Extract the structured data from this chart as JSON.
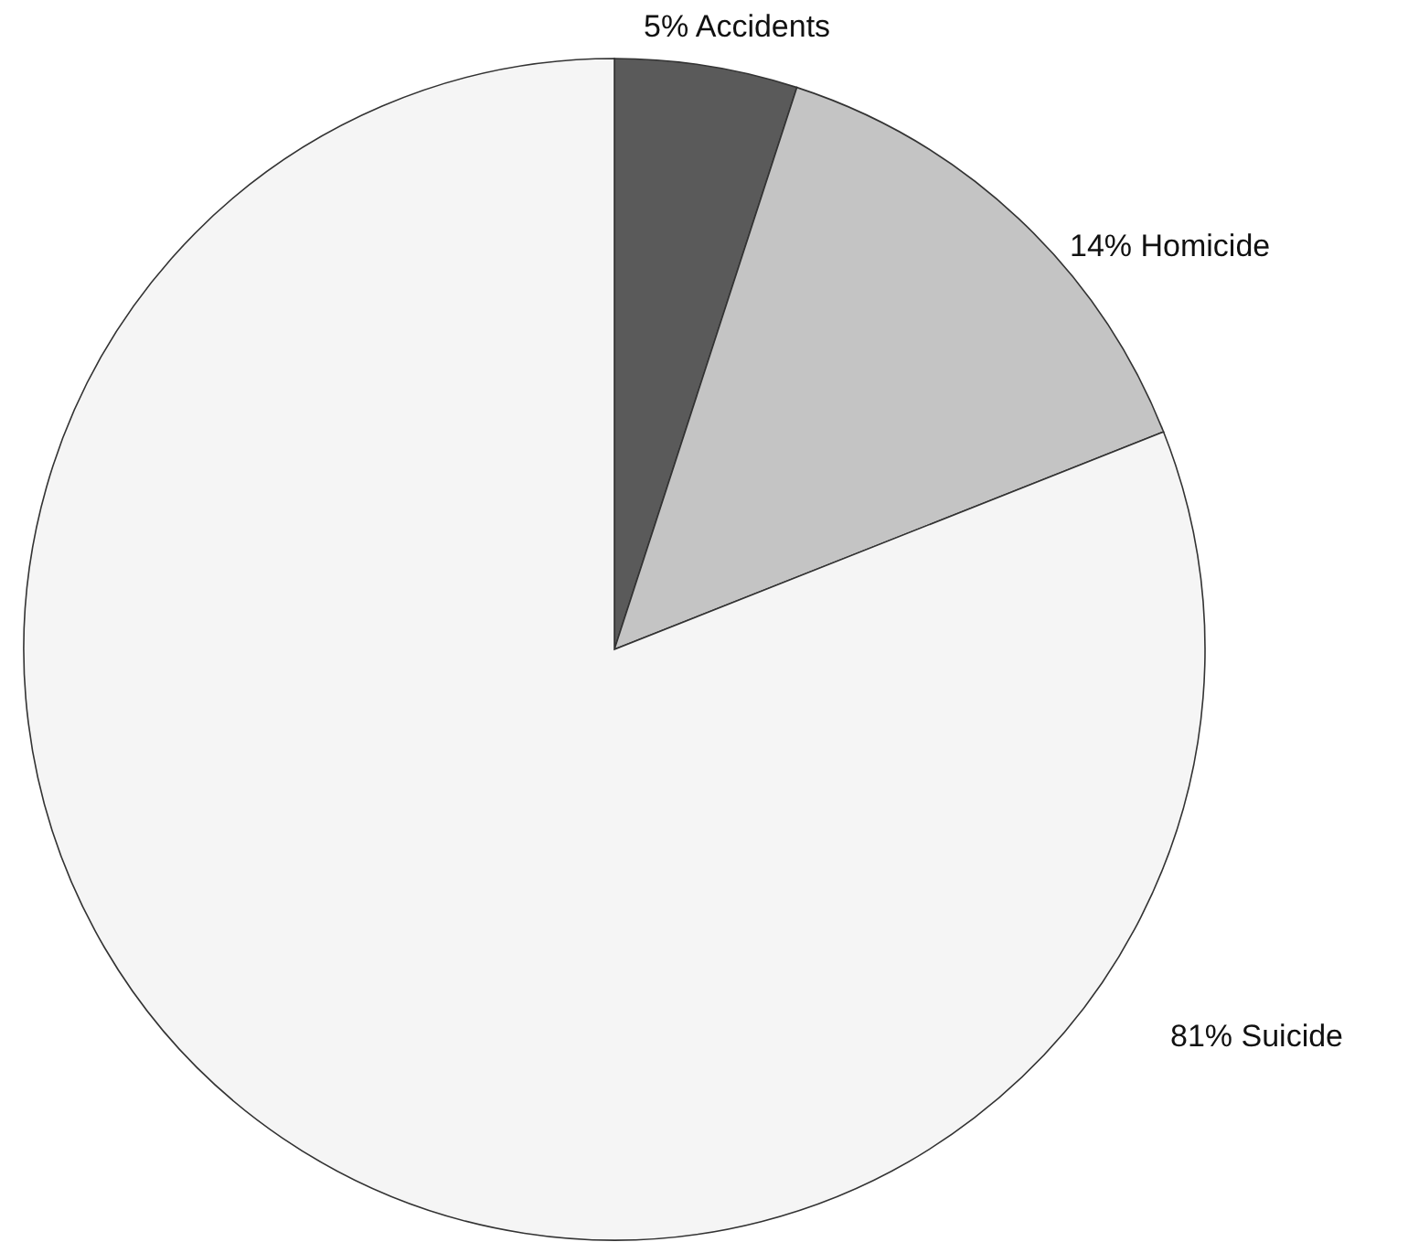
{
  "chart_data": {
    "type": "pie",
    "categories": [
      "Accidents",
      "Homicide",
      "Suicide"
    ],
    "values": [
      5,
      14,
      81
    ],
    "value_labels": [
      "5%",
      "14%",
      "81%"
    ],
    "colors": [
      "#5a5a5a",
      "#c4c4c4",
      "#f5f5f5"
    ]
  }
}
